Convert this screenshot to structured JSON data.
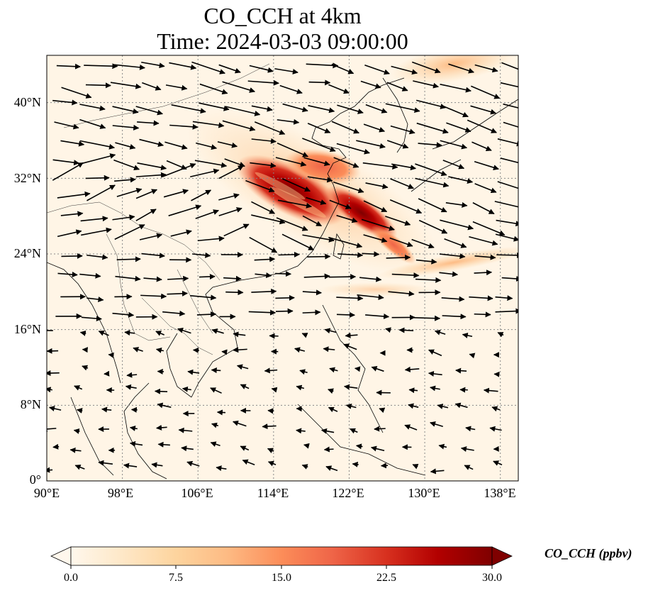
{
  "title": {
    "line1": "CO_CCH at 4km",
    "line2": "Time: 2024-03-03 09:00:00"
  },
  "map": {
    "projection": "PlateCarree",
    "lon_range": [
      90,
      140
    ],
    "lat_range": [
      0,
      45
    ],
    "gridlines": "dotted grey",
    "coastlines": true,
    "borders": true,
    "lat_ticks": [
      "0°",
      "8°N",
      "16°N",
      "24°N",
      "32°N",
      "40°N"
    ],
    "lon_ticks": [
      "90°E",
      "98°E",
      "106°E",
      "114°E",
      "122°E",
      "130°E",
      "138°E"
    ],
    "field_description": "CO concentration plume extending from eastern China over the East China Sea toward southern Japan, with a secondary band east of Taiwan and a patch in the upper-right corner",
    "wind_vectors": "westerly flow north of ~20°N, easterly trades south of ~16°N"
  },
  "colorbar": {
    "label": "CO_CCH (ppbv)",
    "ticks": [
      "0.0",
      "7.5",
      "15.0",
      "22.5",
      "30.0"
    ],
    "min": 0,
    "max": 30,
    "extend": "both",
    "colormap": "OrRd",
    "colors": [
      "#fff7ec",
      "#fee8c8",
      "#fdd49e",
      "#fdbb84",
      "#fc8d59",
      "#ef6548",
      "#d7301f",
      "#b30000",
      "#7f0000"
    ]
  }
}
